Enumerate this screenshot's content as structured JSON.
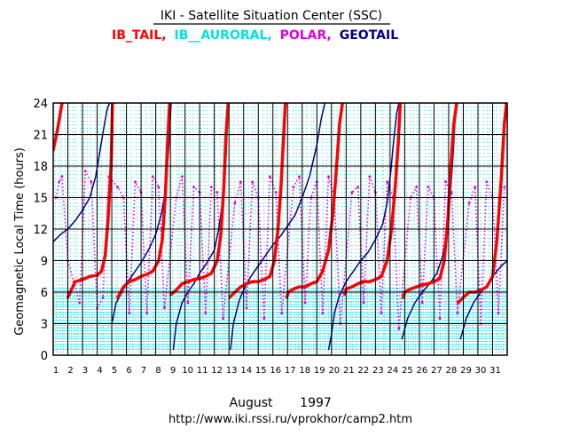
{
  "title": "IKI - Satellite Situation Center (SSC)",
  "chart_data": {
    "type": "scatter",
    "title": "IKI - Satellite Situation Center (SSC)",
    "xlabel": "August 1997",
    "xlabel_month": "August",
    "xlabel_year": "1997",
    "ylabel": "Geomagnetic Local Time (hours)",
    "url": "http://www.iki.rssi.ru/vprokhor/camp2.htm",
    "xlim": [
      1,
      32
    ],
    "ylim": [
      0,
      24
    ],
    "x_ticks": [
      "1",
      "2",
      "3",
      "4",
      "5",
      "6",
      "7",
      "8",
      "9",
      "10",
      "11",
      "12",
      "13",
      "14",
      "15",
      "16",
      "17",
      "18",
      "19",
      "20",
      "21",
      "22",
      "23",
      "24",
      "25",
      "26",
      "27",
      "28",
      "29",
      "30",
      "31"
    ],
    "y_ticks": [
      "0",
      "3",
      "6",
      "9",
      "12",
      "15",
      "18",
      "21",
      "24"
    ],
    "grid": true,
    "legend": "top",
    "series": [
      {
        "name": "IB_TAIL",
        "label": "IB_TAIL,",
        "color": "#ff0000",
        "style": "thick",
        "x": [
          1.0,
          1.3,
          1.6,
          2.0,
          2.5,
          3.0,
          3.5,
          4.0,
          4.3,
          4.55,
          4.75,
          4.95,
          5.05,
          5.4,
          5.8,
          6.2,
          6.6,
          7.0,
          7.4,
          7.8,
          8.2,
          8.45,
          8.65,
          8.8,
          8.95,
          9.05,
          9.4,
          9.8,
          10.2,
          10.6,
          11.0,
          11.4,
          11.8,
          12.2,
          12.45,
          12.65,
          12.8,
          12.95,
          13.05,
          13.4,
          13.8,
          14.2,
          14.6,
          15.0,
          15.4,
          15.8,
          16.1,
          16.35,
          16.55,
          16.7,
          16.85,
          16.95,
          17.05,
          17.4,
          17.8,
          18.2,
          18.6,
          19.0,
          19.4,
          19.8,
          20.1,
          20.35,
          20.55,
          20.75,
          20.9,
          21.0,
          21.4,
          21.8,
          22.2,
          22.6,
          23.0,
          23.4,
          23.8,
          24.1,
          24.35,
          24.55,
          24.7,
          24.9,
          25.0,
          25.4,
          25.8,
          26.2,
          26.6,
          27.0,
          27.4,
          27.7,
          27.95,
          28.15,
          28.35,
          28.55,
          28.65,
          29.0,
          29.4,
          29.8,
          30.2,
          30.6,
          31.0,
          31.3,
          31.6,
          31.8,
          31.95
        ],
        "y": [
          19.5,
          21.5,
          24.0,
          5.5,
          7.0,
          7.2,
          7.5,
          7.6,
          8.0,
          9.5,
          13.0,
          18.0,
          24.0,
          5.5,
          6.5,
          7.0,
          7.2,
          7.5,
          7.7,
          8.0,
          9.0,
          11.0,
          15.0,
          20.0,
          24.0,
          5.8,
          6.2,
          6.8,
          7.0,
          7.2,
          7.3,
          7.5,
          7.8,
          9.0,
          11.5,
          16.0,
          21.0,
          24.0,
          5.5,
          6.0,
          6.5,
          6.8,
          7.0,
          7.0,
          7.2,
          7.5,
          9.0,
          12.0,
          16.0,
          20.0,
          24.0,
          5.5,
          6.0,
          6.3,
          6.5,
          6.5,
          6.8,
          7.0,
          8.0,
          10.0,
          13.5,
          18.0,
          22.0,
          24.0,
          5.8,
          6.3,
          6.5,
          6.8,
          7.0,
          7.0,
          7.2,
          7.5,
          9.0,
          12.0,
          16.0,
          20.0,
          24.0,
          5.5,
          6.0,
          6.3,
          6.5,
          6.7,
          6.8,
          7.0,
          7.3,
          9.0,
          13.0,
          18.0,
          22.0,
          24.0,
          5.0,
          5.5,
          6.0,
          6.0,
          6.2,
          6.5,
          7.5,
          11.0,
          17.0,
          22.0,
          24.0
        ]
      },
      {
        "name": "IB__AURORAL",
        "label": "IB__AURORAL,",
        "color": "#00e0e0",
        "style": "dotted"
      },
      {
        "name": "POLAR",
        "label": "POLAR,",
        "color": "#e000e0",
        "style": "dotted",
        "x": [
          1.2,
          1.4,
          1.6,
          2.0,
          2.4,
          2.8,
          3.2,
          3.6,
          4.0,
          4.4,
          4.8,
          5.4,
          5.8,
          6.2,
          6.6,
          7.0,
          7.4,
          7.8,
          8.2,
          8.6,
          9.4,
          9.8,
          10.2,
          10.6,
          11.0,
          11.4,
          11.8,
          12.2,
          12.6,
          13.4,
          13.8,
          14.2,
          14.6,
          15.0,
          15.4,
          15.8,
          16.2,
          16.6,
          17.4,
          17.8,
          18.2,
          18.6,
          19.0,
          19.4,
          19.8,
          20.2,
          20.6,
          21.4,
          21.8,
          22.2,
          22.6,
          23.0,
          23.4,
          23.8,
          24.2,
          24.6,
          25.4,
          25.8,
          26.2,
          26.6,
          27.0,
          27.4,
          27.8,
          28.2,
          28.6,
          29.4,
          29.8,
          30.2,
          30.6,
          31.0,
          31.4,
          31.8
        ],
        "y": [
          15.0,
          16.5,
          17.0,
          9.0,
          7.0,
          5.0,
          17.5,
          16.5,
          4.5,
          5.5,
          17.0,
          16.0,
          15.0,
          4.0,
          16.5,
          15.5,
          4.0,
          17.0,
          16.0,
          4.5,
          15.0,
          17.0,
          5.0,
          16.0,
          15.5,
          4.0,
          16.0,
          15.5,
          3.5,
          14.5,
          16.5,
          4.5,
          16.5,
          15.0,
          3.5,
          17.0,
          15.5,
          4.0,
          16.0,
          17.0,
          5.0,
          15.0,
          16.5,
          4.0,
          17.0,
          15.0,
          3.0,
          15.5,
          16.0,
          5.0,
          17.0,
          15.5,
          4.0,
          16.5,
          15.0,
          2.5,
          15.0,
          16.0,
          5.0,
          16.0,
          15.0,
          3.5,
          16.5,
          15.5,
          4.0,
          14.5,
          16.0,
          3.0,
          16.5,
          15.0,
          4.0,
          16.0
        ]
      },
      {
        "name": "GEOTAIL",
        "label": "GEOTAIL",
        "color": "#000080",
        "style": "line",
        "x": [
          1.0,
          1.5,
          2.0,
          2.5,
          3.0,
          3.5,
          3.9,
          4.2,
          4.5,
          4.7,
          4.85,
          5.0,
          5.3,
          5.7,
          6.0,
          6.5,
          7.0,
          7.5,
          8.0,
          8.4,
          8.7,
          8.9,
          9.05,
          9.2,
          9.4,
          9.8,
          10.2,
          10.6,
          11.0,
          11.5,
          12.0,
          12.3,
          12.6,
          12.8,
          12.95,
          13.1,
          13.3,
          13.7,
          14.0,
          14.5,
          15.0,
          15.5,
          16.0,
          16.5,
          17.0,
          17.5,
          18.0,
          18.5,
          19.0,
          19.3,
          19.55,
          19.8,
          20.0,
          20.2,
          20.5,
          21.0,
          21.5,
          22.0,
          22.5,
          23.0,
          23.5,
          23.8,
          24.05,
          24.25,
          24.45,
          24.6,
          24.8,
          25.2,
          25.7,
          26.2,
          26.7,
          27.2,
          27.6,
          27.9,
          28.1,
          28.3,
          28.5,
          28.8,
          29.2,
          29.7,
          30.2,
          30.7,
          31.0,
          31.3,
          31.6,
          32.0
        ],
        "y": [
          10.8,
          11.5,
          12.0,
          12.8,
          13.8,
          15.0,
          17.0,
          19.5,
          22.0,
          23.5,
          24.0,
          3.0,
          5.0,
          6.0,
          6.8,
          7.8,
          8.8,
          10.0,
          11.5,
          13.5,
          16.0,
          20.0,
          24.0,
          0.5,
          3.0,
          5.0,
          6.0,
          6.8,
          7.8,
          8.8,
          10.0,
          12.0,
          15.0,
          19.0,
          24.0,
          0.5,
          3.0,
          5.2,
          6.2,
          7.5,
          8.5,
          9.5,
          10.5,
          11.3,
          12.3,
          13.3,
          15.0,
          17.0,
          20.0,
          22.5,
          24.0,
          0.5,
          2.0,
          4.0,
          5.5,
          7.0,
          8.0,
          9.0,
          9.8,
          11.0,
          12.5,
          14.5,
          17.5,
          20.5,
          23.0,
          24.0,
          1.5,
          3.5,
          5.0,
          6.0,
          6.8,
          7.8,
          9.5,
          12.0,
          15.0,
          19.0,
          24.0,
          1.5,
          3.5,
          5.0,
          6.0,
          6.8,
          7.5,
          8.0,
          8.5,
          9.0
        ]
      }
    ]
  }
}
